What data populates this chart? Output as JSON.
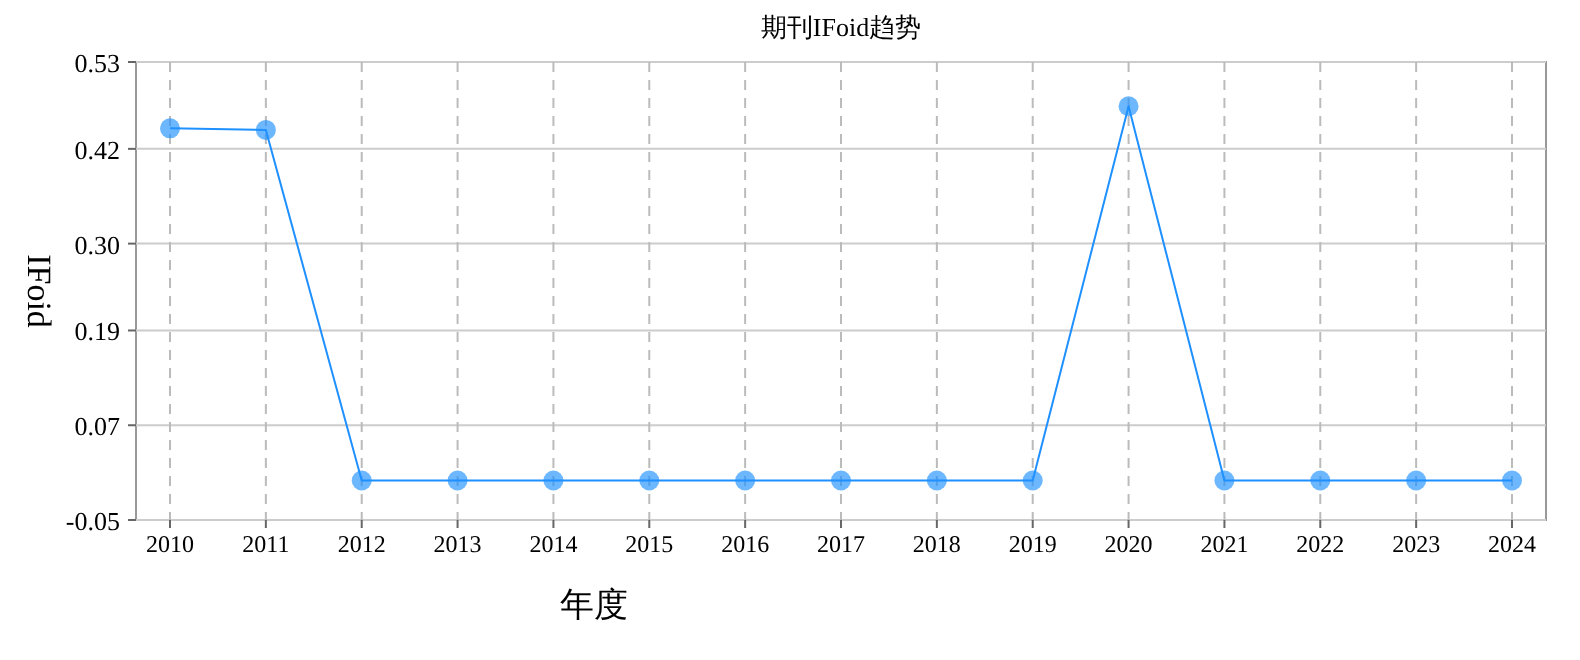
{
  "chart_data": {
    "type": "line",
    "title": "期刊IFoid趋势",
    "xlabel": "年度",
    "ylabel": "IFoid",
    "categories": [
      "2010",
      "2011",
      "2012",
      "2013",
      "2014",
      "2015",
      "2016",
      "2017",
      "2018",
      "2019",
      "2020",
      "2021",
      "2022",
      "2023",
      "2024"
    ],
    "series": [
      {
        "color": "#1e90ff",
        "values": [
          0.446,
          0.444,
          0,
          0,
          0,
          0,
          0,
          0,
          0,
          0,
          0.474,
          0,
          0,
          0,
          0
        ]
      }
    ],
    "ylim": [
      -0.05,
      0.53
    ],
    "yticks": [
      -0.05,
      0.07,
      0.19,
      {
        "value": 0.3,
        "label": "0.30"
      },
      0.42,
      0.53
    ],
    "grid": true,
    "marker": "circle",
    "line_style": "solid"
  }
}
